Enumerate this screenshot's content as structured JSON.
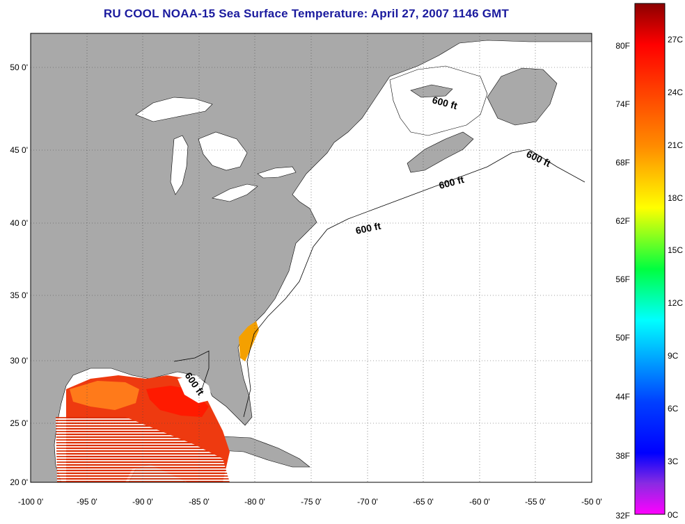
{
  "title": "RU COOL  NOAA-15  Sea Surface Temperature:  April 27, 2007 1146 GMT",
  "map": {
    "lon_range": [
      -100,
      -50
    ],
    "lat_range": [
      20,
      52.5
    ],
    "x_ticks": [
      "-100 0'",
      "-95 0'",
      "-90 0'",
      "-85 0'",
      "-80 0'",
      "-75 0'",
      "-70 0'",
      "-65 0'",
      "-60 0'",
      "-55 0'",
      "-50 0'"
    ],
    "y_ticks": [
      "50 0'",
      "45 0'",
      "40 0'",
      "35 0'",
      "30 0'",
      "25 0'",
      "20 0'"
    ],
    "grid": true,
    "colors": {
      "land": "#a9a9a9",
      "ocean": "#ffffff",
      "coast": "#000000"
    },
    "contour_labels": [
      "600 ft",
      "600 ft",
      "600 ft",
      "600 ft",
      "600 ft"
    ]
  },
  "colorbar": {
    "f_labels": [
      "80F",
      "74F",
      "68F",
      "62F",
      "56F",
      "50F",
      "44F",
      "38F",
      "32F"
    ],
    "c_labels": [
      "27C",
      "24C",
      "21C",
      "18C",
      "15C",
      "12C",
      "9C",
      "6C",
      "3C",
      "0C"
    ],
    "stops": [
      "#8b0000",
      "#ff0000",
      "#ff8c00",
      "#ffff00",
      "#00ff40",
      "#00ffff",
      "#0040ff",
      "#0000ff",
      "#8a2be2",
      "#ff00ff"
    ]
  }
}
